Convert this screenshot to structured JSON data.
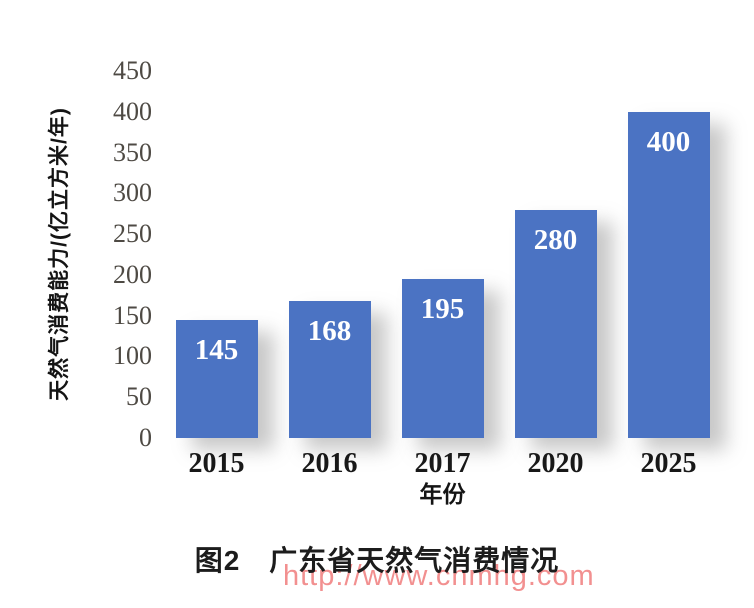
{
  "figure": {
    "caption": "图2　广东省天然气消费情况",
    "watermark": "http://www.cnmhg.com"
  },
  "chart_data": {
    "type": "bar",
    "categories": [
      "2015",
      "2016",
      "2017",
      "2020",
      "2025"
    ],
    "values": [
      145,
      168,
      195,
      280,
      400
    ],
    "data_labels": [
      "145",
      "168",
      "195",
      "280",
      "400"
    ],
    "title": "图2　广东省天然气消费情况",
    "xlabel": "年份",
    "ylabel": "天然气消费能力/(亿立方米/年)",
    "yticks": [
      0,
      50,
      100,
      150,
      200,
      250,
      300,
      350,
      400,
      450
    ],
    "ylim": [
      0,
      450
    ],
    "grid": false,
    "legend": false,
    "bar_color": "#4B73C3",
    "bar_label_color": "#FFFFFF",
    "tick_color": "#4E4A44",
    "watermark_color": "#F07D7D"
  }
}
